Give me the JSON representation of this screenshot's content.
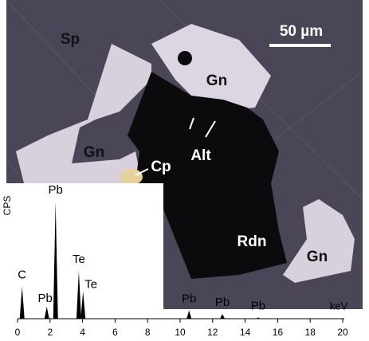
{
  "micrograph": {
    "scale_bar": "50 µm",
    "labels": [
      {
        "text": "Sp"
      },
      {
        "text": "Gn"
      },
      {
        "text": "Gn"
      },
      {
        "text": "Alt"
      },
      {
        "text": "Cp"
      },
      {
        "text": "Rdn"
      },
      {
        "text": "Gn"
      }
    ]
  },
  "spectrum": {
    "y_label": "CPS",
    "x_label": "keV",
    "xlim": [
      0,
      20
    ],
    "xticks": [
      0,
      2,
      4,
      6,
      8,
      10,
      12,
      14,
      16,
      18,
      20
    ],
    "peaks": [
      {
        "label": "C",
        "x": 0.28,
        "height": 27
      },
      {
        "label": "Pb",
        "x": 1.8,
        "height": 10
      },
      {
        "label": "Pb",
        "x": 2.34,
        "height": 98
      },
      {
        "label": "Te",
        "x": 3.77,
        "height": 40
      },
      {
        "label": "Te",
        "x": 4.03,
        "height": 23
      },
      {
        "label": "Pb",
        "x": 10.55,
        "height": 7
      },
      {
        "label": "Pb",
        "x": 12.6,
        "height": 4
      },
      {
        "label": "Pb",
        "x": 14.8,
        "height": 1
      }
    ]
  }
}
